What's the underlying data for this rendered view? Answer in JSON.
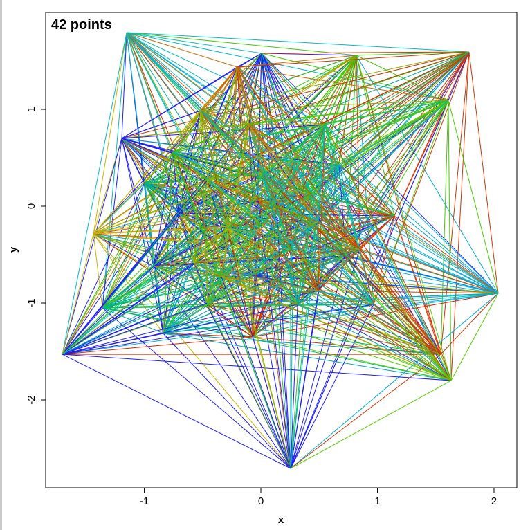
{
  "chart_data": {
    "type": "network",
    "title": "42 points",
    "x_label": "x",
    "y_label": "y",
    "x": [
      -1.151,
      0.006,
      0.819,
      1.786,
      -0.202,
      1.608,
      -1.193,
      0.671,
      0.285,
      -1.0,
      -0.706,
      1.145,
      -1.436,
      0.73,
      -0.92,
      -0.042,
      2.036,
      -1.359,
      -0.071,
      -0.837,
      1.543,
      -1.703,
      1.632,
      0.255,
      -0.457,
      -0.279,
      0.136,
      0.433,
      -0.576,
      0.255,
      0.493,
      -0.457,
      0.967,
      -0.754,
      -0.101,
      0.552,
      0.849,
      -0.516,
      0.315,
      0.018,
      -0.338,
      0.493
    ],
    "y": [
      1.793,
      1.579,
      1.557,
      1.593,
      1.436,
      1.093,
      0.7,
      0.429,
      0.471,
      0.236,
      -0.071,
      -0.1,
      -0.286,
      -0.514,
      -0.621,
      -0.714,
      -0.9,
      -1.05,
      -1.35,
      -1.314,
      -1.529,
      -1.529,
      -1.8,
      -2.707,
      0.271,
      -0.229,
      -0.014,
      0.129,
      -0.586,
      -0.443,
      -0.871,
      -1.014,
      -1.014,
      0.557,
      0.843,
      0.843,
      -0.443,
      0.986,
      -1.014,
      0.343,
      -0.729,
      -0.157
    ],
    "colors": [
      "#00b8c8",
      "#1a1aff",
      "#33cc00",
      "#cc3300",
      "#cc6600",
      "#44cc00",
      "#1a1aff",
      "#00a0e0",
      "#00b4cc",
      "#00aa88",
      "#1a1aff",
      "#dd3300",
      "#c8b400",
      "#1a1aff",
      "#1a1aff",
      "#2233dd",
      "#00aadd",
      "#00bb66",
      "#cc2200",
      "#00a0b8",
      "#cc3300",
      "#1a1aff",
      "#55cc00",
      "#1a1aff",
      "#88bb00",
      "#aabb00",
      "#cc5500",
      "#33bb33",
      "#99bb00",
      "#00bb88",
      "#cc4400",
      "#66bb00",
      "#00bbbb",
      "#33bb00",
      "#bb8800",
      "#00cc66",
      "#dd4400",
      "#88aa00",
      "#00b0a0",
      "#22bb44",
      "#aa9900",
      "#00aacc"
    ],
    "xlim": [
      -1.846,
      2.196
    ],
    "ylim": [
      -2.907,
      2.0
    ],
    "xticks": [
      -1,
      0,
      1,
      2
    ],
    "yticks": [
      -2,
      -1,
      0,
      1
    ]
  }
}
